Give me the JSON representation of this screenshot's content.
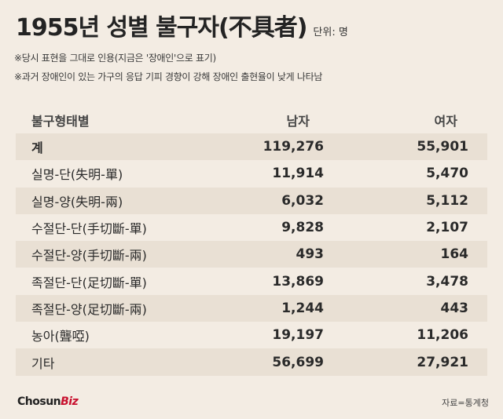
{
  "title": "1955년 성별 불구자(不具者)",
  "unit": "단위: 명",
  "notes": [
    "※당시 표현을 그대로 인용(지금은 '장애인'으로 표기)",
    "※과거 장애인이 있는 가구의 응답 기피 경향이 강해 장애인 출현율이 낮게 나타남"
  ],
  "table": {
    "headers": [
      "불구형태별",
      "남자",
      "여자"
    ],
    "rows": [
      {
        "type": "계",
        "male": "119,276",
        "female": "55,901"
      },
      {
        "type": "실명-단(失明-單)",
        "male": "11,914",
        "female": "5,470"
      },
      {
        "type": "실명-양(失明-兩)",
        "male": "6,032",
        "female": "5,112"
      },
      {
        "type": "수절단-단(手切斷-單)",
        "male": "9,828",
        "female": "2,107"
      },
      {
        "type": "수절단-양(手切斷-兩)",
        "male": "493",
        "female": "164"
      },
      {
        "type": "족절단-단(足切斷-單)",
        "male": "13,869",
        "female": "3,478"
      },
      {
        "type": "족절단-양(足切斷-兩)",
        "male": "1,244",
        "female": "443"
      },
      {
        "type": "농아(聾啞)",
        "male": "19,197",
        "female": "11,206"
      },
      {
        "type": "기타",
        "male": "56,699",
        "female": "27,921"
      }
    ]
  },
  "logo": {
    "main": "Chosun",
    "accent": "Biz"
  },
  "source": "자료=통계청",
  "colors": {
    "background": "#f3ece3",
    "stripe": "#e9e0d4",
    "accent": "#c8102e"
  }
}
